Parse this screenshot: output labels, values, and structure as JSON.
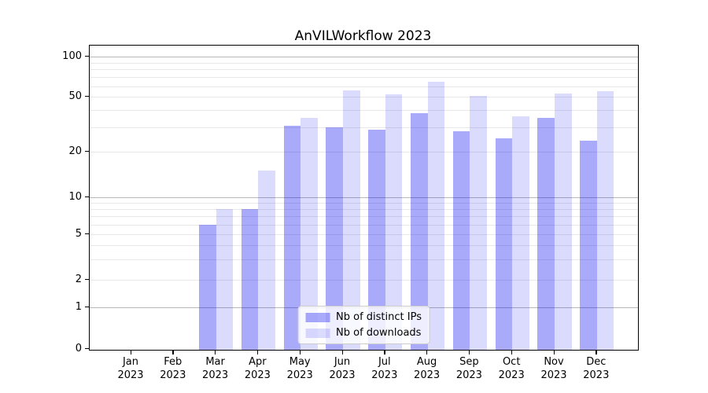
{
  "title": "AnVILWorkflow 2023",
  "chart_data": {
    "type": "bar",
    "title": "AnVILWorkflow 2023",
    "categories": [
      "Jan 2023",
      "Feb 2023",
      "Mar 2023",
      "Apr 2023",
      "May 2023",
      "Jun 2023",
      "Jul 2023",
      "Aug 2023",
      "Sep 2023",
      "Oct 2023",
      "Nov 2023",
      "Dec 2023"
    ],
    "x_months": [
      "Jan",
      "Feb",
      "Mar",
      "Apr",
      "May",
      "Jun",
      "Jul",
      "Aug",
      "Sep",
      "Oct",
      "Nov",
      "Dec"
    ],
    "x_year": "2023",
    "series": [
      {
        "name": "Nb of distinct IPs",
        "color": "rgba(0,0,240,0.335)",
        "color_hex": "#a9a9f7",
        "values": [
          0,
          0,
          6,
          8,
          31,
          30,
          29,
          38,
          28,
          25,
          35,
          24
        ]
      },
      {
        "name": "Nb of downloads",
        "color": "rgba(0,0,240,0.14)",
        "color_hex": "#dbdbf9",
        "values": [
          0,
          0,
          8,
          15,
          35,
          56,
          52,
          65,
          51,
          36,
          53,
          55
        ]
      }
    ],
    "yscale": "symlog",
    "ylim": [
      0,
      120
    ],
    "y_tick_values": [
      0,
      1,
      2,
      5,
      10,
      20,
      50,
      100
    ],
    "y_major_gridlines": [
      1,
      10,
      100
    ],
    "y_minor_gridlines": [
      2,
      3,
      4,
      5,
      6,
      7,
      8,
      9,
      20,
      30,
      40,
      50,
      60,
      70,
      80,
      90
    ],
    "grid": true,
    "legend_position": "lower center"
  },
  "legend": {
    "items": [
      "Nb of distinct IPs",
      "Nb of downloads"
    ]
  },
  "colors": {
    "background": "#ffffff",
    "axis": "#000000",
    "grid_major": "#b8b8b8",
    "grid_minor": "#e8e8e8",
    "legend_border": "#cccccc",
    "bar_distinct_ips": "#a9a9f7",
    "bar_downloads": "#dbdbf9"
  }
}
